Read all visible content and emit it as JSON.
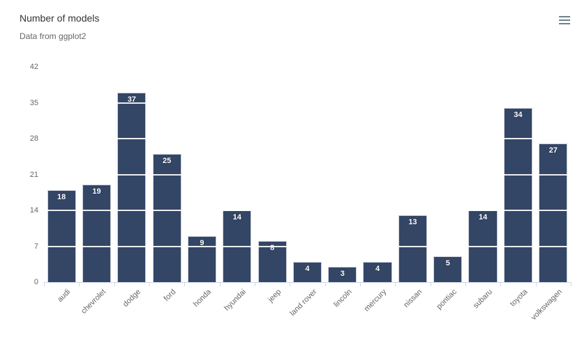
{
  "header": {
    "title": "Number of models",
    "subtitle": "Data from ggplot2"
  },
  "menu": {
    "icon": "hamburger-menu-icon"
  },
  "colors": {
    "bar": "#344666",
    "title_text": "#333333",
    "subtitle_text": "#666666",
    "axis_label": "#666666",
    "axis_line": "#ccd6eb",
    "grid_line_over_bars": "#ffffff",
    "data_label": "#ffffff",
    "menu_icon": "#6f7f8d",
    "background": "#ffffff"
  },
  "chart_data": {
    "type": "bar",
    "title": "Number of models",
    "subtitle": "Data from ggplot2",
    "categories": [
      "audi",
      "chevrolet",
      "dodge",
      "ford",
      "honda",
      "hyundai",
      "jeep",
      "land rover",
      "lincoln",
      "mercury",
      "nissan",
      "pontiac",
      "subaru",
      "toyota",
      "volkswagen"
    ],
    "values": [
      18,
      19,
      37,
      25,
      9,
      14,
      8,
      4,
      3,
      4,
      13,
      5,
      14,
      34,
      27
    ],
    "xlabel": "",
    "ylabel": "",
    "yticks": [
      0,
      7,
      14,
      21,
      28,
      35,
      42
    ],
    "ylim": [
      0,
      42
    ],
    "grid": "horizontal white lines drawn over bars",
    "legend": "none",
    "x_label_rotation": -45,
    "data_labels": "value inside top of each bar, white bold"
  }
}
